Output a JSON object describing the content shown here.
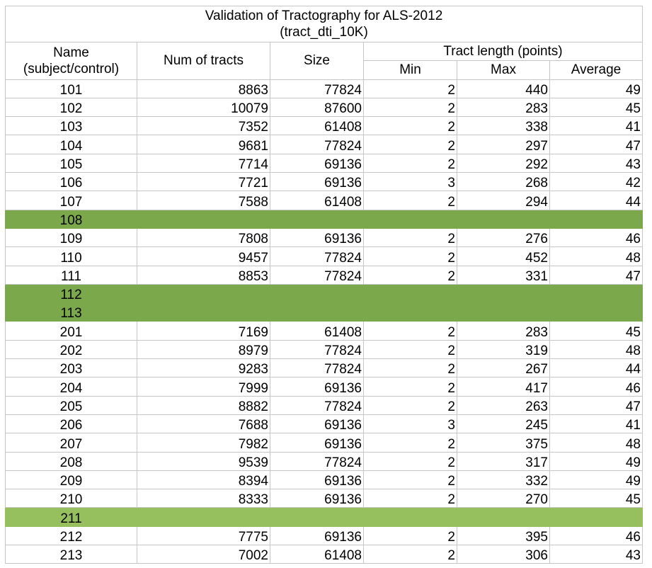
{
  "title": {
    "line1": "Validation of Tractography for ALS-2012",
    "line2": "(tract_dti_10K)"
  },
  "headers": {
    "name_line1": "Name",
    "name_line2": "(subject/control)",
    "num_tracts": "Num of tracts",
    "size": "Size",
    "tract_length": "Tract length (points)",
    "min": "Min",
    "max": "Max",
    "average": "Average"
  },
  "highlight_colors": {
    "dark_green": "#7aa84a",
    "light_green": "#96c05e"
  },
  "rows": [
    {
      "name": "101",
      "tracts": "8863",
      "size": "77824",
      "min": "2",
      "max": "440",
      "avg": "49"
    },
    {
      "name": "102",
      "tracts": "10079",
      "size": "87600",
      "min": "2",
      "max": "283",
      "avg": "45"
    },
    {
      "name": "103",
      "tracts": "7352",
      "size": "61408",
      "min": "2",
      "max": "338",
      "avg": "41"
    },
    {
      "name": "104",
      "tracts": "9681",
      "size": "77824",
      "min": "2",
      "max": "297",
      "avg": "47"
    },
    {
      "name": "105",
      "tracts": "7714",
      "size": "69136",
      "min": "2",
      "max": "292",
      "avg": "43"
    },
    {
      "name": "106",
      "tracts": "7721",
      "size": "69136",
      "min": "3",
      "max": "268",
      "avg": "42"
    },
    {
      "name": "107",
      "tracts": "7588",
      "size": "61408",
      "min": "2",
      "max": "294",
      "avg": "44"
    },
    {
      "name": "108",
      "highlight": "dark"
    },
    {
      "name": "109",
      "tracts": "7808",
      "size": "69136",
      "min": "2",
      "max": "276",
      "avg": "46"
    },
    {
      "name": "110",
      "tracts": "9457",
      "size": "77824",
      "min": "2",
      "max": "452",
      "avg": "48"
    },
    {
      "name": "111",
      "tracts": "8853",
      "size": "77824",
      "min": "2",
      "max": "331",
      "avg": "47"
    },
    {
      "name": "112",
      "highlight": "dark"
    },
    {
      "name": "113",
      "highlight": "dark"
    },
    {
      "name": "201",
      "tracts": "7169",
      "size": "61408",
      "min": "2",
      "max": "283",
      "avg": "45"
    },
    {
      "name": "202",
      "tracts": "8979",
      "size": "77824",
      "min": "2",
      "max": "319",
      "avg": "48"
    },
    {
      "name": "203",
      "tracts": "9283",
      "size": "77824",
      "min": "2",
      "max": "267",
      "avg": "44"
    },
    {
      "name": "204",
      "tracts": "7999",
      "size": "69136",
      "min": "2",
      "max": "417",
      "avg": "46"
    },
    {
      "name": "205",
      "tracts": "8882",
      "size": "77824",
      "min": "2",
      "max": "263",
      "avg": "47"
    },
    {
      "name": "206",
      "tracts": "7688",
      "size": "69136",
      "min": "3",
      "max": "245",
      "avg": "41"
    },
    {
      "name": "207",
      "tracts": "7982",
      "size": "69136",
      "min": "2",
      "max": "375",
      "avg": "48"
    },
    {
      "name": "208",
      "tracts": "9539",
      "size": "77824",
      "min": "2",
      "max": "317",
      "avg": "49"
    },
    {
      "name": "209",
      "tracts": "8394",
      "size": "69136",
      "min": "2",
      "max": "332",
      "avg": "49"
    },
    {
      "name": "210",
      "tracts": "8333",
      "size": "69136",
      "min": "2",
      "max": "270",
      "avg": "45"
    },
    {
      "name": "211",
      "highlight": "light"
    },
    {
      "name": "212",
      "tracts": "7775",
      "size": "69136",
      "min": "2",
      "max": "395",
      "avg": "46"
    },
    {
      "name": "213",
      "tracts": "7002",
      "size": "61408",
      "min": "2",
      "max": "306",
      "avg": "43"
    }
  ]
}
